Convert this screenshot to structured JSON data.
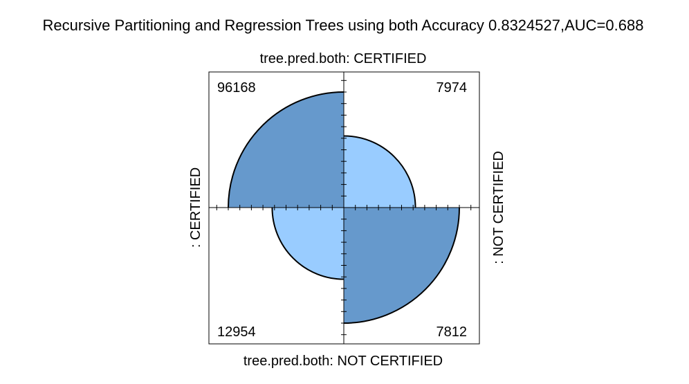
{
  "chart_data": {
    "type": "fourfold",
    "title": "Recursive Partitioning and Regression Trees using both Accuracy 0.8324527,AUC=0.688",
    "top_label": "tree.pred.both: CERTIFIED",
    "bottom_label": "tree.pred.both: NOT CERTIFIED",
    "left_label": ": CERTIFIED",
    "right_label": ": NOT CERTIFIED",
    "cells": [
      {
        "name": "top-left",
        "value": 96168,
        "color": "#6699cc"
      },
      {
        "name": "top-right",
        "value": 7974,
        "color": "#99ccff"
      },
      {
        "name": "bottom-left",
        "value": 12954,
        "color": "#99ccff"
      },
      {
        "name": "bottom-right",
        "value": 7812,
        "color": "#6699cc"
      }
    ],
    "cell_labels": [
      "96168",
      "7974",
      "12954",
      "7812"
    ],
    "relative_radii": [
      1.0,
      0.62,
      0.62,
      1.0
    ],
    "grid": false
  }
}
